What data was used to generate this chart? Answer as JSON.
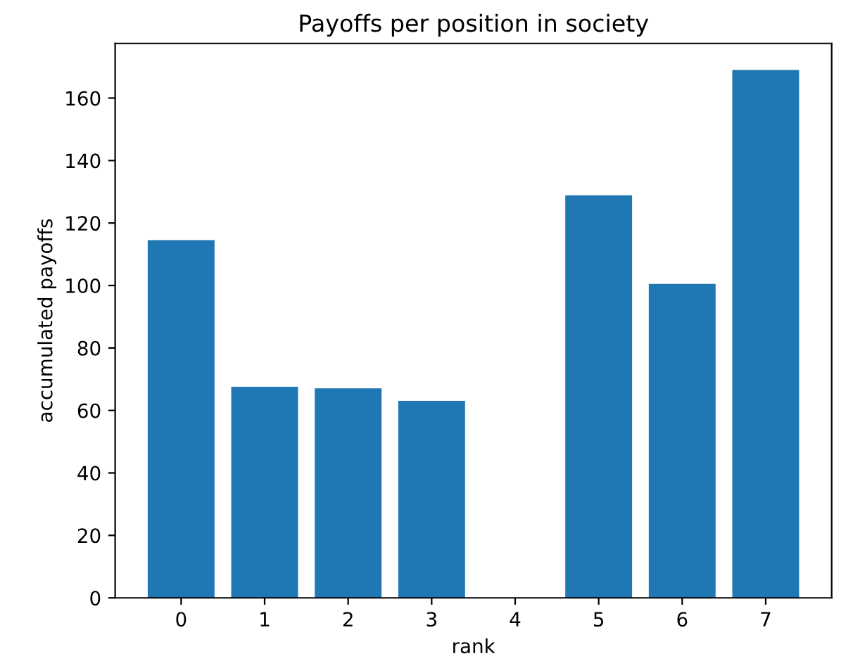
{
  "chart_data": {
    "type": "bar",
    "title": "Payoffs per position in society",
    "xlabel": "rank",
    "ylabel": "accumulated payoffs",
    "categories": [
      "0",
      "1",
      "2",
      "3",
      "4",
      "5",
      "6",
      "7"
    ],
    "values": [
      114.5,
      67.6,
      67.1,
      63.1,
      0,
      128.9,
      100.5,
      169.0
    ],
    "color": "#1f77b4",
    "ylim": [
      0,
      177.5
    ],
    "yticks": [
      0,
      20,
      40,
      60,
      80,
      100,
      120,
      140,
      160
    ],
    "grid": false,
    "legend": false
  }
}
